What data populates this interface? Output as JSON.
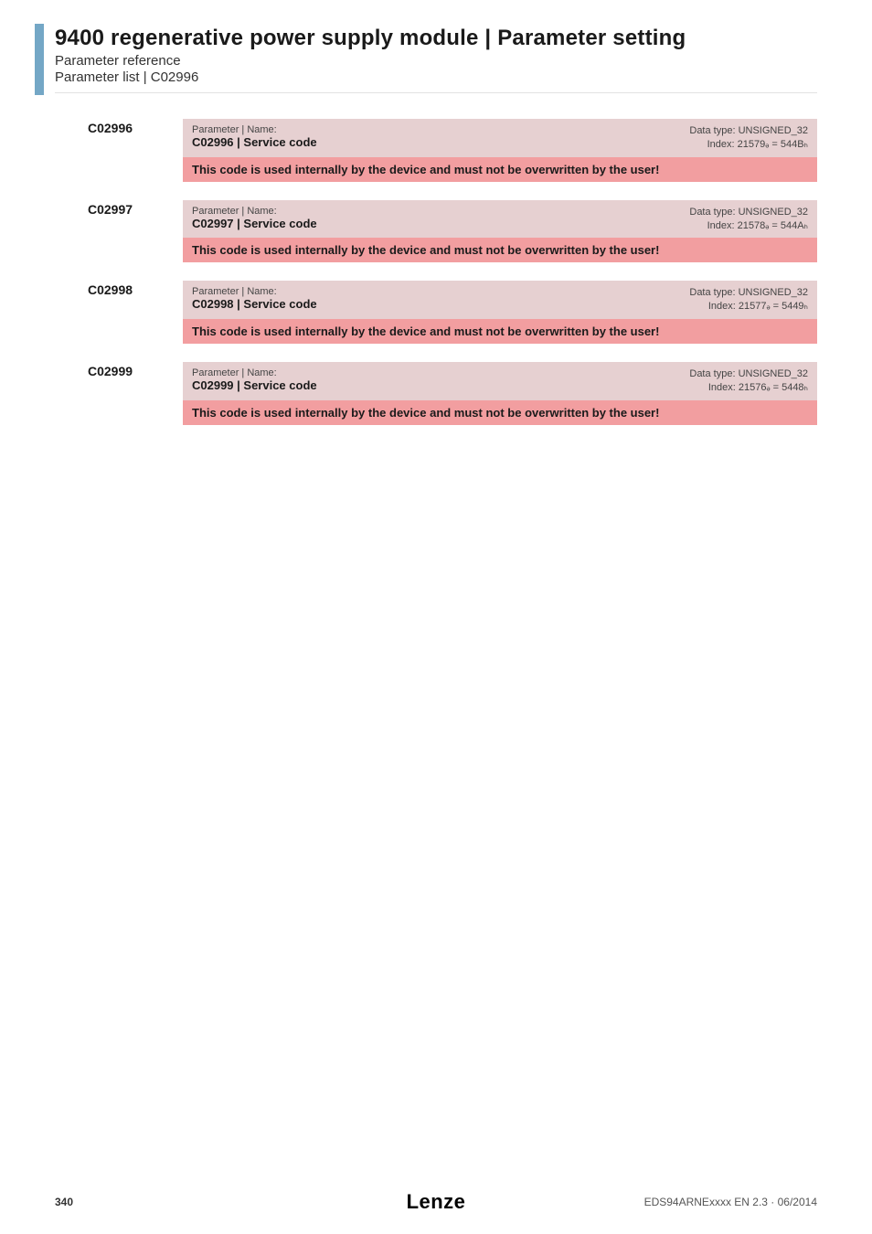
{
  "styling": {
    "accent_color": "#74a7c6",
    "param_header_bg": "#e6d0d1",
    "warning_bg": "#f29ea0",
    "warning_text_color": "#1a1a1a"
  },
  "header": {
    "title": "9400 regenerative power supply module | Parameter setting",
    "subtitle": "Parameter reference",
    "breadcrumb": "Parameter list | C02996"
  },
  "params": [
    {
      "code": "C02996",
      "label": "Parameter | Name:",
      "name": "C02996 | Service code",
      "datatype": "Data type: UNSIGNED_32",
      "index": "Index: 21579ₔ = 544Bₕ",
      "warning": "This code is used internally by the device and must not be overwritten by the user!"
    },
    {
      "code": "C02997",
      "label": "Parameter | Name:",
      "name": "C02997 | Service code",
      "datatype": "Data type: UNSIGNED_32",
      "index": "Index: 21578ₔ = 544Aₕ",
      "warning": "This code is used internally by the device and must not be overwritten by the user!"
    },
    {
      "code": "C02998",
      "label": "Parameter | Name:",
      "name": "C02998 | Service code",
      "datatype": "Data type: UNSIGNED_32",
      "index": "Index: 21577ₔ = 5449ₕ",
      "warning": "This code is used internally by the device and must not be overwritten by the user!"
    },
    {
      "code": "C02999",
      "label": "Parameter | Name:",
      "name": "C02999 | Service code",
      "datatype": "Data type: UNSIGNED_32",
      "index": "Index: 21576ₔ = 5448ₕ",
      "warning": "This code is used internally by the device and must not be overwritten by the user!"
    }
  ],
  "footer": {
    "page_number": "340",
    "logo": "Lenze",
    "doc_id": "EDS94ARNExxxx EN 2.3 · 06/2014"
  }
}
